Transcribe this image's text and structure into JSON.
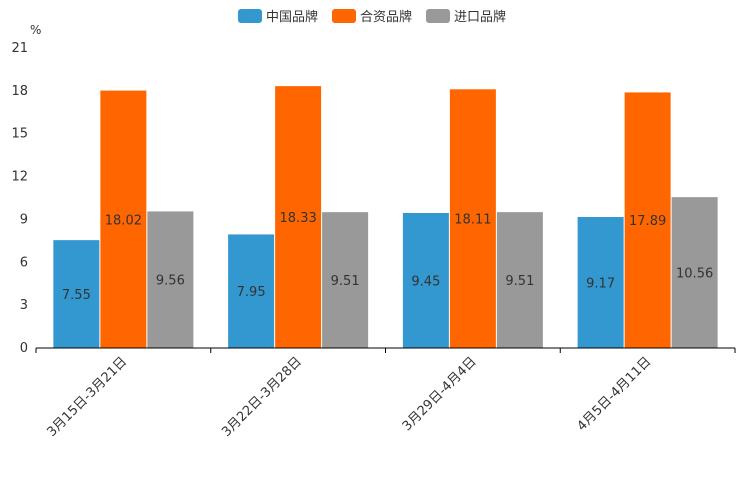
{
  "chart_data": {
    "type": "bar",
    "unit_label": "%",
    "categories": [
      "3月15日-3月21日",
      "3月22日-3月28日",
      "3月29日-4月4日",
      "4月5日-4月11日"
    ],
    "series": [
      {
        "name": "中国品牌",
        "color": "#3398d0",
        "values": [
          7.55,
          7.95,
          9.45,
          9.17
        ],
        "labels": [
          "7.55",
          "7.95",
          "9.45",
          "9.17"
        ]
      },
      {
        "name": "合资品牌",
        "color": "#ff6600",
        "values": [
          18.02,
          18.33,
          18.11,
          17.89
        ],
        "labels": [
          "18.02",
          "18.33",
          "18.11",
          "17.89"
        ]
      },
      {
        "name": "进口品牌",
        "color": "#999999",
        "values": [
          9.56,
          9.51,
          9.51,
          10.56
        ],
        "labels": [
          "9.56",
          "9.51",
          "9.51",
          "10.56"
        ]
      }
    ],
    "yticks": [
      "0",
      "3",
      "6",
      "9",
      "12",
      "15",
      "18",
      "21"
    ],
    "ylim": [
      0,
      21
    ],
    "legend_position": "top-center"
  }
}
